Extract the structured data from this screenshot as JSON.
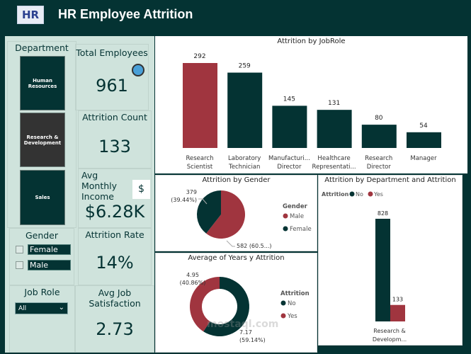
{
  "header": {
    "title": "HR Employee Attrition",
    "logo_text": "HR"
  },
  "department_slicer": {
    "title": "Department",
    "items": [
      "Human Resources",
      "Research & Development",
      "Sales"
    ],
    "selected": "Research & Development"
  },
  "gender_slicer": {
    "title": "Gender",
    "items": [
      "Female",
      "Male"
    ]
  },
  "jobrole_slicer": {
    "title": "Job Role",
    "value": "All"
  },
  "kpis": {
    "total_employees": {
      "label": "Total Employees",
      "value": "961",
      "icon": "people-icon"
    },
    "attrition_count": {
      "label": "Attrition Count",
      "value": "133"
    },
    "avg_monthly_income": {
      "label": "Avg Monthly Income",
      "value": "$6.28K",
      "icon": "money-hand-icon"
    },
    "attrition_rate": {
      "label": "Attrition Rate",
      "value": "14%"
    },
    "avg_job_satisfaction": {
      "label": "Avg Job Satisfaction",
      "value": "2.73"
    }
  },
  "colors": {
    "dark": "#043333",
    "red": "#a0353f",
    "panel": "#cfe3dc"
  },
  "chart_data": [
    {
      "type": "bar",
      "title": "Attrition by JobRole",
      "categories": [
        "Research Scientist",
        "Laboratory Technician",
        "Manufacturi... Director",
        "Healthcare Representati...",
        "Research Director",
        "Manager"
      ],
      "values": [
        292,
        259,
        145,
        131,
        80,
        54
      ],
      "highlight": "Research Scientist"
    },
    {
      "type": "pie",
      "title": "Attrition by Gender",
      "legend_title": "Gender",
      "slices": [
        {
          "name": "Male",
          "value": 582,
          "label": "582 (60.5...)"
        },
        {
          "name": "Female",
          "value": 379,
          "label": "379",
          "pct": "(39.44%)"
        }
      ]
    },
    {
      "type": "pie",
      "title": "Average of Years y Attrition",
      "donut": true,
      "legend_title": "Attrition",
      "slices": [
        {
          "name": "No",
          "value": 7.17,
          "label": "7.17",
          "pct": "(59.14%)"
        },
        {
          "name": "Yes",
          "value": 4.95,
          "label": "4.95",
          "pct": "(40.86%)"
        }
      ]
    },
    {
      "type": "bar",
      "title": "Attrition by Department and Attrition",
      "legend_title": "Attrition",
      "categories": [
        "Research & Developm..."
      ],
      "series": [
        {
          "name": "No",
          "values": [
            828
          ]
        },
        {
          "name": "Yes",
          "values": [
            133
          ]
        }
      ]
    }
  ],
  "watermark": "mostaql.com"
}
